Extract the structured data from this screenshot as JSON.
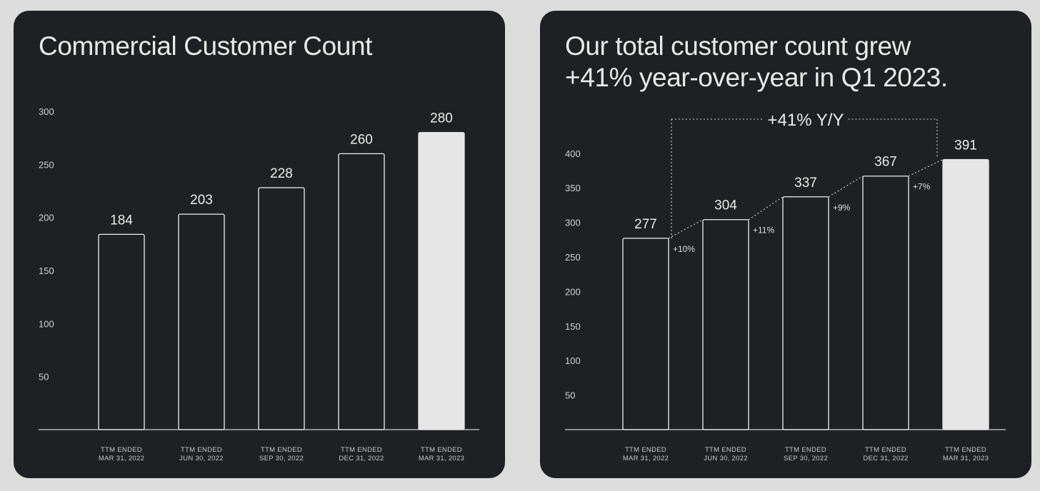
{
  "colors": {
    "background": "#dcdcdc",
    "panel": "#1f2023",
    "bar_outline": "#f0f0f0",
    "highlight_bar": "#e6e6e6",
    "text": "#e9e9e9"
  },
  "chart_data": [
    {
      "type": "bar",
      "title": "Commercial Customer Count",
      "categories": [
        [
          "TTM ENDED",
          "MAR 31, 2022"
        ],
        [
          "TTM ENDED",
          "JUN 30, 2022"
        ],
        [
          "TTM ENDED",
          "SEP 30, 2022"
        ],
        [
          "TTM ENDED",
          "DEC 31, 2022"
        ],
        [
          "TTM ENDED",
          "MAR 31, 2023"
        ]
      ],
      "values": [
        184,
        203,
        228,
        260,
        280
      ],
      "data_labels": [
        "184",
        "203",
        "228",
        "260",
        "280"
      ],
      "y_ticks": [
        50,
        100,
        150,
        200,
        250,
        300
      ],
      "ylim": [
        0,
        300
      ],
      "highlight_index": 4,
      "grid": false,
      "xlabel": "",
      "ylabel": ""
    },
    {
      "type": "bar",
      "title": "Our total customer count grew +41% year-over-year in Q1 2023.",
      "title_lines": [
        "Our total customer count grew",
        "+41% year-over-year in Q1 2023."
      ],
      "categories": [
        [
          "TTM ENDED",
          "MAR 31, 2022"
        ],
        [
          "TTM ENDED",
          "JUN 30, 2022"
        ],
        [
          "TTM ENDED",
          "SEP 30, 2022"
        ],
        [
          "TTM ENDED",
          "DEC 31, 2022"
        ],
        [
          "TTM ENDED",
          "MAR 31, 2023"
        ]
      ],
      "values": [
        277,
        304,
        337,
        367,
        391
      ],
      "data_labels": [
        "277",
        "304",
        "337",
        "367",
        "391"
      ],
      "growth_labels": [
        "+10%",
        "+11%",
        "+9%",
        "+7%"
      ],
      "yoy_annotation": "+41% Y/Y",
      "y_ticks": [
        50,
        100,
        150,
        200,
        250,
        300,
        350,
        400
      ],
      "ylim": [
        0,
        400
      ],
      "highlight_index": 4,
      "grid": false,
      "xlabel": "",
      "ylabel": ""
    }
  ]
}
